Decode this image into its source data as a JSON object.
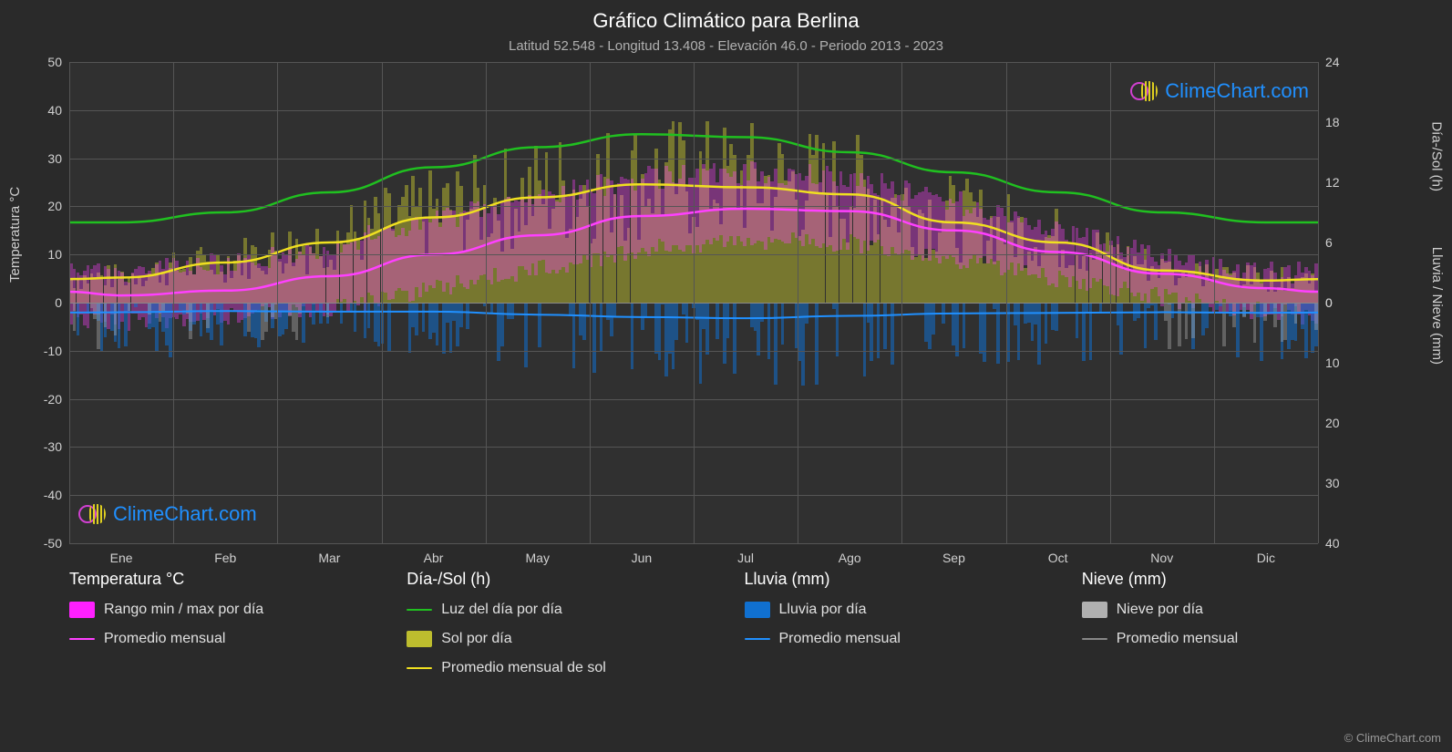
{
  "title": "Gráfico Climático para Berlina",
  "subtitle": "Latitud 52.548 - Longitud 13.408 - Elevación 46.0 - Periodo 2013 - 2023",
  "watermark_text": "ClimeChart.com",
  "copyright": "© ClimeChart.com",
  "chart": {
    "background_color": "#303030",
    "grid_color": "#555555",
    "axis_left": {
      "label": "Temperatura °C",
      "min": -50,
      "max": 50,
      "ticks": [
        -50,
        -40,
        -30,
        -20,
        -10,
        0,
        10,
        20,
        30,
        40,
        50
      ]
    },
    "axis_right_top": {
      "label": "Día-/Sol (h)",
      "min": 0,
      "max": 24,
      "ticks": [
        0,
        6,
        12,
        18,
        24
      ]
    },
    "axis_right_bottom": {
      "label": "Lluvia / Nieve (mm)",
      "min": 0,
      "max": 40,
      "ticks": [
        0,
        10,
        20,
        30,
        40
      ]
    },
    "months": [
      "Ene",
      "Feb",
      "Mar",
      "Abr",
      "May",
      "Jun",
      "Jul",
      "Ago",
      "Sep",
      "Oct",
      "Nov",
      "Dic"
    ],
    "series": {
      "daylight": {
        "color": "#20c020",
        "values_h": [
          8,
          9,
          11,
          13.5,
          15.5,
          16.8,
          16.5,
          15,
          13,
          11,
          9,
          8
        ]
      },
      "sun_monthly": {
        "color": "#f0e020",
        "values_h": [
          2.5,
          4,
          6,
          8.5,
          10.5,
          11.8,
          11.5,
          10.8,
          8,
          6,
          3.2,
          2.2
        ]
      },
      "temp_monthly": {
        "color": "#ff40ff",
        "values_c": [
          1.5,
          2.5,
          5.5,
          10,
          14,
          18,
          19.5,
          19,
          15,
          10.5,
          6,
          3
        ]
      },
      "rain_monthly": {
        "color": "#2090ff",
        "values_mm": [
          1.6,
          1.4,
          1.5,
          1.5,
          2,
          2.4,
          2.6,
          2.2,
          1.8,
          1.7,
          1.6,
          1.7
        ]
      },
      "temp_range": {
        "fill_color": "#ff40ff",
        "opacity": 0.35,
        "min_c": [
          -4,
          -3,
          -1,
          3,
          7,
          11,
          13,
          12.5,
          9,
          5,
          1,
          -2
        ],
        "max_c": [
          6,
          8,
          12,
          17,
          22,
          26,
          27,
          26,
          21,
          15,
          9,
          6
        ]
      },
      "sun_daily_fill": {
        "fill_color": "#bdbd2e",
        "opacity": 0.5
      },
      "rain_daily_bars": {
        "fill_color": "#1070d0",
        "opacity": 0.55
      },
      "snow_daily_bars": {
        "fill_color": "#b0b0b0",
        "opacity": 0.4
      }
    }
  },
  "legend": {
    "temp": {
      "header": "Temperatura °C",
      "items": [
        {
          "kind": "swatch",
          "color": "#ff20ff",
          "label": "Rango min / max por día"
        },
        {
          "kind": "line",
          "color": "#ff40ff",
          "label": "Promedio mensual"
        }
      ]
    },
    "daysun": {
      "header": "Día-/Sol (h)",
      "items": [
        {
          "kind": "line",
          "color": "#20c020",
          "label": "Luz del día por día"
        },
        {
          "kind": "swatch",
          "color": "#bdbd2e",
          "label": "Sol por día"
        },
        {
          "kind": "line",
          "color": "#f0e020",
          "label": "Promedio mensual de sol"
        }
      ]
    },
    "rain": {
      "header": "Lluvia (mm)",
      "items": [
        {
          "kind": "swatch",
          "color": "#1070d0",
          "label": "Lluvia por día"
        },
        {
          "kind": "line",
          "color": "#2090ff",
          "label": "Promedio mensual"
        }
      ]
    },
    "snow": {
      "header": "Nieve (mm)",
      "items": [
        {
          "kind": "swatch",
          "color": "#b0b0b0",
          "label": "Nieve por día"
        },
        {
          "kind": "line",
          "color": "#888888",
          "label": "Promedio mensual"
        }
      ]
    }
  }
}
